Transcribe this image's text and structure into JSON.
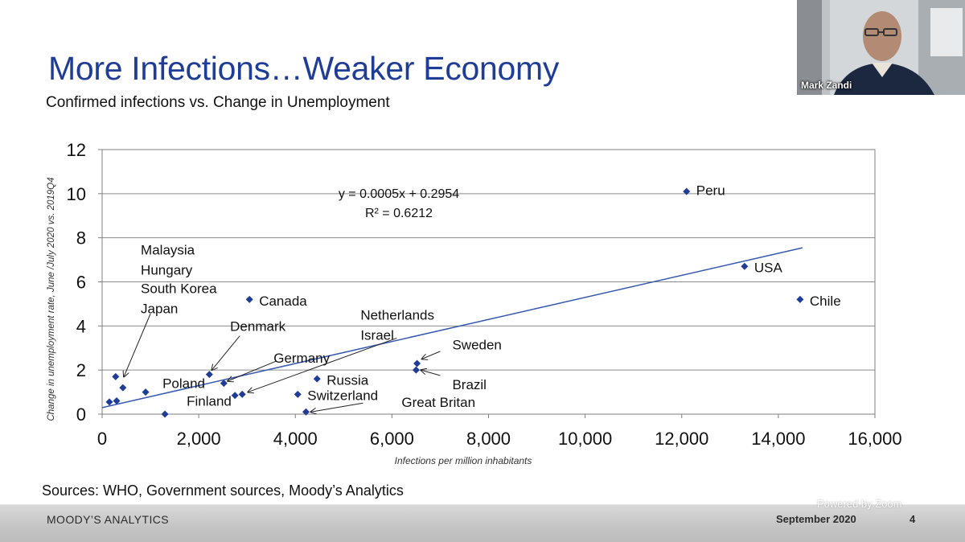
{
  "slide": {
    "title": "More Infections…Weaker Economy",
    "subtitle": "Confirmed infections vs. Change in Unemployment",
    "sources": "Sources: WHO, Government sources, Moody’s Analytics"
  },
  "footer": {
    "brand": "MOODY’S ANALYTICS",
    "date": "September 2020",
    "page": "4"
  },
  "zoom": {
    "watermark": "Powered by Zoom",
    "participant_name": "Mark Zandi"
  },
  "colors": {
    "title": "#1f3d96",
    "marker": "#1f3d96",
    "trendline": "#3558b0"
  },
  "chart_data": {
    "type": "scatter",
    "xlabel": "Infections per million inhabitants",
    "ylabel": "Change in unemployment rate, June /July 2020 vs. 2019Q4",
    "xlim": [
      0,
      16000
    ],
    "ylim": [
      0,
      12
    ],
    "xticks": [
      0,
      2000,
      4000,
      6000,
      8000,
      10000,
      12000,
      14000,
      16000
    ],
    "xtick_labels": [
      "0",
      "2,000",
      "4,000",
      "6,000",
      "8,000",
      "10,000",
      "12,000",
      "14,000",
      "16,000"
    ],
    "yticks": [
      0,
      2,
      4,
      6,
      8,
      10,
      12
    ],
    "ytick_labels": [
      "0",
      "2",
      "4",
      "6",
      "8",
      "10",
      "12"
    ],
    "grid": "horizontal",
    "legend": "none",
    "points": [
      {
        "x": 12100,
        "y": 10.1
      },
      {
        "x": 13300,
        "y": 6.7
      },
      {
        "x": 14450,
        "y": 5.2
      },
      {
        "x": 3050,
        "y": 5.2
      },
      {
        "x": 6520,
        "y": 2.3
      },
      {
        "x": 6500,
        "y": 2.0
      },
      {
        "x": 4450,
        "y": 1.6
      },
      {
        "x": 4050,
        "y": 0.9
      },
      {
        "x": 4220,
        "y": 0.1
      },
      {
        "x": 2220,
        "y": 1.8
      },
      {
        "x": 2520,
        "y": 1.4
      },
      {
        "x": 2750,
        "y": 0.85
      },
      {
        "x": 2900,
        "y": 0.9
      },
      {
        "x": 900,
        "y": 1.0
      },
      {
        "x": 1300,
        "y": 0.0
      },
      {
        "x": 280,
        "y": 1.7
      },
      {
        "x": 430,
        "y": 1.2
      },
      {
        "x": 150,
        "y": 0.55
      },
      {
        "x": 300,
        "y": 0.6
      }
    ],
    "trendline": {
      "equation": "y = 0.0005x + 0.2954",
      "r2": "R² = 0.6212",
      "x_range": [
        0,
        14500
      ]
    },
    "annotations": [
      {
        "text": "Peru",
        "x": 12300,
        "y": 10.15
      },
      {
        "text": "USA",
        "x": 13500,
        "y": 6.65
      },
      {
        "text": "Chile",
        "x": 14650,
        "y": 5.15
      },
      {
        "text": "Canada",
        "x": 3250,
        "y": 5.15
      },
      {
        "text": "Sweden",
        "x": 7250,
        "y": 3.15
      },
      {
        "text": "Brazil",
        "x": 7250,
        "y": 1.35
      },
      {
        "text": "Russia",
        "x": 4650,
        "y": 1.55
      },
      {
        "text": "Switzerland",
        "x": 4250,
        "y": 0.85
      },
      {
        "text": "Great Britan",
        "x": 6200,
        "y": 0.55
      },
      {
        "text": "Netherlands",
        "x": 5350,
        "y": 4.5
      },
      {
        "text": "Israel",
        "x": 5350,
        "y": 3.6
      },
      {
        "text": "Germany",
        "x": 3550,
        "y": 2.55
      },
      {
        "text": "Denmark",
        "x": 2650,
        "y": 4.0
      },
      {
        "text": "Poland",
        "x": 1250,
        "y": 1.4
      },
      {
        "text": "Finland",
        "x": 1750,
        "y": 0.6
      },
      {
        "text": "Malaysia",
        "x": 800,
        "y": 7.45
      },
      {
        "text": "Hungary",
        "x": 800,
        "y": 6.55
      },
      {
        "text": "South Korea",
        "x": 800,
        "y": 5.7
      },
      {
        "text": "Japan",
        "x": 800,
        "y": 4.8
      }
    ],
    "arrows": [
      {
        "from": [
          7000,
          2.85
        ],
        "to": [
          6620,
          2.5
        ]
      },
      {
        "from": [
          7000,
          1.75
        ],
        "to": [
          6600,
          2.0
        ]
      },
      {
        "from": [
          5400,
          0.5
        ],
        "to": [
          4320,
          0.1
        ]
      },
      {
        "from": [
          6100,
          3.45
        ],
        "to": [
          3020,
          1.0
        ]
      },
      {
        "from": [
          3600,
          2.4
        ],
        "to": [
          2600,
          1.5
        ]
      },
      {
        "from": [
          2850,
          3.55
        ],
        "to": [
          2270,
          2.0
        ]
      },
      {
        "from": [
          1000,
          4.55
        ],
        "to": [
          450,
          1.7
        ]
      }
    ]
  }
}
